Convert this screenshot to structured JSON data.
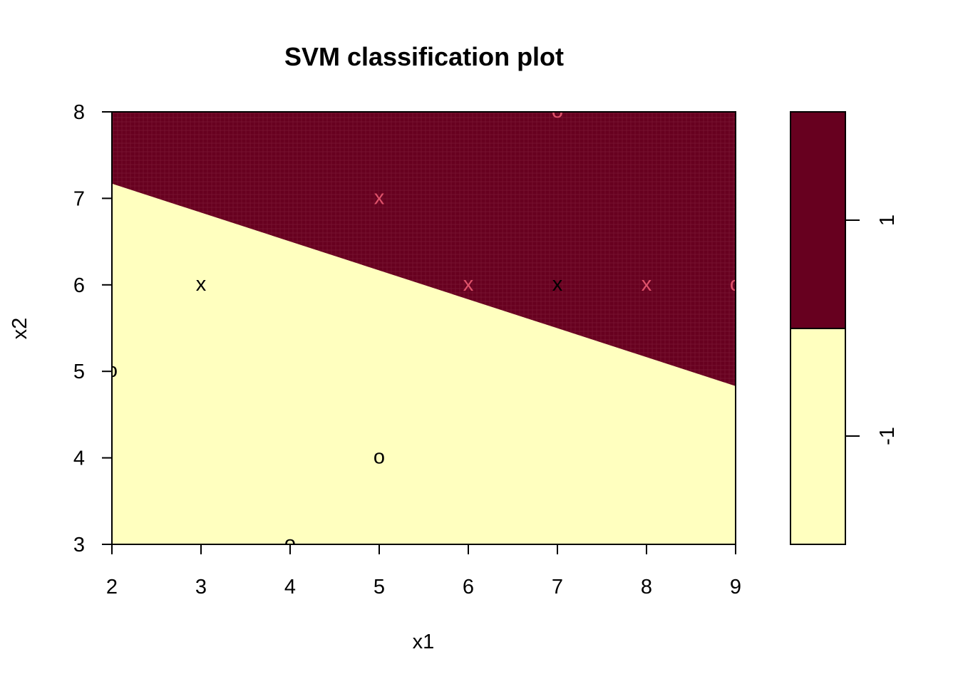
{
  "chart_data": {
    "type": "scatter",
    "title": "SVM classification plot",
    "xlabel": "x1",
    "ylabel": "x2",
    "xlim": [
      2,
      9
    ],
    "ylim": [
      3,
      8
    ],
    "x_ticks": [
      "2",
      "3",
      "4",
      "5",
      "6",
      "7",
      "8",
      "9"
    ],
    "y_ticks": [
      "3",
      "4",
      "5",
      "6",
      "7",
      "8"
    ],
    "decision_boundary": {
      "x": [
        2,
        9
      ],
      "y": [
        7.17,
        4.83
      ]
    },
    "regions": [
      {
        "label": "1",
        "side": "above boundary",
        "color": "#67001f"
      },
      {
        "label": "-1",
        "side": "below boundary",
        "color": "#ffffbf"
      }
    ],
    "legend": {
      "placement": "right",
      "labels": [
        "1",
        "-1"
      ]
    },
    "points": [
      {
        "x": 7,
        "y": 8,
        "symbol": "o",
        "color": "#df536b"
      },
      {
        "x": 5,
        "y": 7,
        "symbol": "x",
        "color": "#df536b"
      },
      {
        "x": 3,
        "y": 6,
        "symbol": "x",
        "color": "#000000"
      },
      {
        "x": 6,
        "y": 6,
        "symbol": "x",
        "color": "#df536b"
      },
      {
        "x": 7,
        "y": 6,
        "symbol": "x",
        "color": "#000000"
      },
      {
        "x": 8,
        "y": 6,
        "symbol": "x",
        "color": "#df536b"
      },
      {
        "x": 9,
        "y": 6,
        "symbol": "o",
        "color": "#df536b"
      },
      {
        "x": 2,
        "y": 5,
        "symbol": "o",
        "color": "#000000"
      },
      {
        "x": 5,
        "y": 4,
        "symbol": "o",
        "color": "#000000"
      },
      {
        "x": 4,
        "y": 3,
        "symbol": "o",
        "color": "#000000"
      }
    ]
  }
}
